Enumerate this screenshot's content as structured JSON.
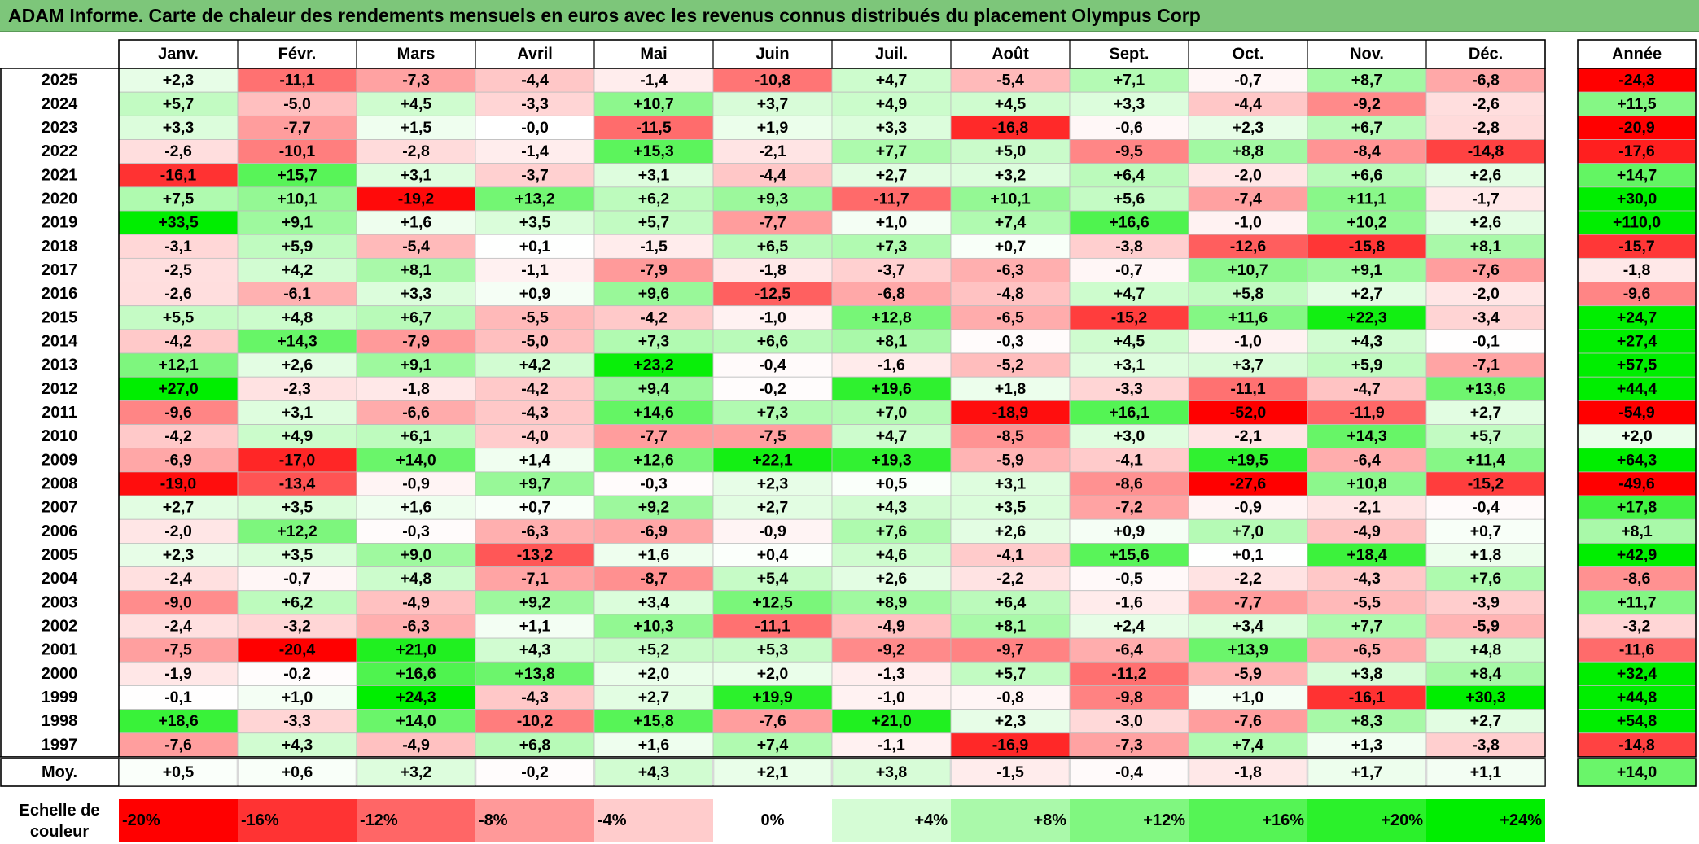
{
  "title": "ADAM Informe. Carte de chaleur des rendements mensuels en euros avec les revenus connus distribués du placement Olympus Corp",
  "chart_data": {
    "type": "heatmap",
    "months": [
      "Janv.",
      "Févr.",
      "Mars",
      "Avril",
      "Mai",
      "Juin",
      "Juil.",
      "Août",
      "Sept.",
      "Oct.",
      "Nov.",
      "Déc."
    ],
    "annual_header": "Année",
    "rows": [
      {
        "year": "2025",
        "values": [
          "+2,3",
          "-11,1",
          "-7,3",
          "-4,4",
          "-1,4",
          "-10,8",
          "+4,7",
          "-5,4",
          "+7,1",
          "-0,7",
          "+8,7",
          "-6,8"
        ],
        "annual": "-24,3"
      },
      {
        "year": "2024",
        "values": [
          "+5,7",
          "-5,0",
          "+4,5",
          "-3,3",
          "+10,7",
          "+3,7",
          "+4,9",
          "+4,5",
          "+3,3",
          "-4,4",
          "-9,2",
          "-2,6"
        ],
        "annual": "+11,5"
      },
      {
        "year": "2023",
        "values": [
          "+3,3",
          "-7,7",
          "+1,5",
          "-0,0",
          "-11,5",
          "+1,9",
          "+3,3",
          "-16,8",
          "-0,6",
          "+2,3",
          "+6,7",
          "-2,8"
        ],
        "annual": "-20,9"
      },
      {
        "year": "2022",
        "values": [
          "-2,6",
          "-10,1",
          "-2,8",
          "-1,4",
          "+15,3",
          "-2,1",
          "+7,7",
          "+5,0",
          "-9,5",
          "+8,8",
          "-8,4",
          "-14,8"
        ],
        "annual": "-17,6"
      },
      {
        "year": "2021",
        "values": [
          "-16,1",
          "+15,7",
          "+3,1",
          "-3,7",
          "+3,1",
          "-4,4",
          "+2,7",
          "+3,2",
          "+6,4",
          "-2,0",
          "+6,6",
          "+2,6"
        ],
        "annual": "+14,7"
      },
      {
        "year": "2020",
        "values": [
          "+7,5",
          "+10,1",
          "-19,2",
          "+13,2",
          "+6,2",
          "+9,3",
          "-11,7",
          "+10,1",
          "+5,6",
          "-7,4",
          "+11,1",
          "-1,7"
        ],
        "annual": "+30,0"
      },
      {
        "year": "2019",
        "values": [
          "+33,5",
          "+9,1",
          "+1,6",
          "+3,5",
          "+5,7",
          "-7,7",
          "+1,0",
          "+7,4",
          "+16,6",
          "-1,0",
          "+10,2",
          "+2,6"
        ],
        "annual": "+110,0"
      },
      {
        "year": "2018",
        "values": [
          "-3,1",
          "+5,9",
          "-5,4",
          "+0,1",
          "-1,5",
          "+6,5",
          "+7,3",
          "+0,7",
          "-3,8",
          "-12,6",
          "-15,8",
          "+8,1"
        ],
        "annual": "-15,7"
      },
      {
        "year": "2017",
        "values": [
          "-2,5",
          "+4,2",
          "+8,1",
          "-1,1",
          "-7,9",
          "-1,8",
          "-3,7",
          "-6,3",
          "-0,7",
          "+10,7",
          "+9,1",
          "-7,6"
        ],
        "annual": "-1,8"
      },
      {
        "year": "2016",
        "values": [
          "-2,6",
          "-6,1",
          "+3,3",
          "+0,9",
          "+9,6",
          "-12,5",
          "-6,8",
          "-4,8",
          "+4,7",
          "+5,8",
          "+2,7",
          "-2,0"
        ],
        "annual": "-9,6"
      },
      {
        "year": "2015",
        "values": [
          "+5,5",
          "+4,8",
          "+6,7",
          "-5,5",
          "-4,2",
          "-1,0",
          "+12,8",
          "-6,5",
          "-15,2",
          "+11,6",
          "+22,3",
          "-3,4"
        ],
        "annual": "+24,7"
      },
      {
        "year": "2014",
        "values": [
          "-4,2",
          "+14,3",
          "-7,9",
          "-5,0",
          "+7,3",
          "+6,6",
          "+8,1",
          "-0,3",
          "+4,5",
          "-1,0",
          "+4,3",
          "-0,1"
        ],
        "annual": "+27,4"
      },
      {
        "year": "2013",
        "values": [
          "+12,1",
          "+2,6",
          "+9,1",
          "+4,2",
          "+23,2",
          "-0,4",
          "-1,6",
          "-5,2",
          "+3,1",
          "+3,7",
          "+5,9",
          "-7,1"
        ],
        "annual": "+57,5"
      },
      {
        "year": "2012",
        "values": [
          "+27,0",
          "-2,3",
          "-1,8",
          "-4,2",
          "+9,4",
          "-0,2",
          "+19,6",
          "+1,8",
          "-3,3",
          "-11,1",
          "-4,7",
          "+13,6"
        ],
        "annual": "+44,4"
      },
      {
        "year": "2011",
        "values": [
          "-9,6",
          "+3,1",
          "-6,6",
          "-4,3",
          "+14,6",
          "+7,3",
          "+7,0",
          "-18,9",
          "+16,1",
          "-52,0",
          "-11,9",
          "+2,7"
        ],
        "annual": "-54,9"
      },
      {
        "year": "2010",
        "values": [
          "-4,2",
          "+4,9",
          "+6,1",
          "-4,0",
          "-7,7",
          "-7,5",
          "+4,7",
          "-8,5",
          "+3,0",
          "-2,1",
          "+14,3",
          "+5,7"
        ],
        "annual": "+2,0"
      },
      {
        "year": "2009",
        "values": [
          "-6,9",
          "-17,0",
          "+14,0",
          "+1,4",
          "+12,6",
          "+22,1",
          "+19,3",
          "-5,9",
          "-4,1",
          "+19,5",
          "-6,4",
          "+11,4"
        ],
        "annual": "+64,3"
      },
      {
        "year": "2008",
        "values": [
          "-19,0",
          "-13,4",
          "-0,9",
          "+9,7",
          "-0,3",
          "+2,3",
          "+0,5",
          "+3,1",
          "-8,6",
          "-27,6",
          "+10,8",
          "-15,2"
        ],
        "annual": "-49,6"
      },
      {
        "year": "2007",
        "values": [
          "+2,7",
          "+3,5",
          "+1,6",
          "+0,7",
          "+9,2",
          "+2,7",
          "+4,3",
          "+3,5",
          "-7,2",
          "-0,9",
          "-2,1",
          "-0,4"
        ],
        "annual": "+17,8"
      },
      {
        "year": "2006",
        "values": [
          "-2,0",
          "+12,2",
          "-0,3",
          "-6,3",
          "-6,9",
          "-0,9",
          "+7,6",
          "+2,6",
          "+0,9",
          "+7,0",
          "-4,9",
          "+0,7"
        ],
        "annual": "+8,1"
      },
      {
        "year": "2005",
        "values": [
          "+2,3",
          "+3,5",
          "+9,0",
          "-13,2",
          "+1,6",
          "+0,4",
          "+4,6",
          "-4,1",
          "+15,6",
          "+0,1",
          "+18,4",
          "+1,8"
        ],
        "annual": "+42,9"
      },
      {
        "year": "2004",
        "values": [
          "-2,4",
          "-0,7",
          "+4,8",
          "-7,1",
          "-8,7",
          "+5,4",
          "+2,6",
          "-2,2",
          "-0,5",
          "-2,2",
          "-4,3",
          "+7,6"
        ],
        "annual": "-8,6"
      },
      {
        "year": "2003",
        "values": [
          "-9,0",
          "+6,2",
          "-4,9",
          "+9,2",
          "+3,4",
          "+12,5",
          "+8,9",
          "+6,4",
          "-1,6",
          "-7,7",
          "-5,5",
          "-3,9"
        ],
        "annual": "+11,7"
      },
      {
        "year": "2002",
        "values": [
          "-2,4",
          "-3,2",
          "-6,3",
          "+1,1",
          "+10,3",
          "-11,1",
          "-4,9",
          "+8,1",
          "+2,4",
          "+3,4",
          "+7,7",
          "-5,9"
        ],
        "annual": "-3,2"
      },
      {
        "year": "2001",
        "values": [
          "-7,5",
          "-20,4",
          "+21,0",
          "+4,3",
          "+5,2",
          "+5,3",
          "-9,2",
          "-9,7",
          "-6,4",
          "+13,9",
          "-6,5",
          "+4,8"
        ],
        "annual": "-11,6"
      },
      {
        "year": "2000",
        "values": [
          "-1,9",
          "-0,2",
          "+16,6",
          "+13,8",
          "+2,0",
          "+2,0",
          "-1,3",
          "+5,7",
          "-11,2",
          "-5,9",
          "+3,8",
          "+8,4"
        ],
        "annual": "+32,4"
      },
      {
        "year": "1999",
        "values": [
          "-0,1",
          "+1,0",
          "+24,3",
          "-4,3",
          "+2,7",
          "+19,9",
          "-1,0",
          "-0,8",
          "-9,8",
          "+1,0",
          "-16,1",
          "+30,3"
        ],
        "annual": "+44,8"
      },
      {
        "year": "1998",
        "values": [
          "+18,6",
          "-3,3",
          "+14,0",
          "-10,2",
          "+15,8",
          "-7,6",
          "+21,0",
          "+2,3",
          "-3,0",
          "-7,6",
          "+8,3",
          "+2,7"
        ],
        "annual": "+54,8"
      },
      {
        "year": "1997",
        "values": [
          "-7,6",
          "+4,3",
          "-4,9",
          "+6,8",
          "+1,6",
          "+7,4",
          "-1,1",
          "-16,9",
          "-7,3",
          "+7,4",
          "+1,3",
          "-3,8"
        ],
        "annual": "-14,8"
      }
    ],
    "average": {
      "label": "Moy.",
      "values": [
        "+0,5",
        "+0,6",
        "+3,2",
        "-0,2",
        "+4,3",
        "+2,1",
        "+3,8",
        "-1,5",
        "-0,4",
        "-1,8",
        "+1,7",
        "+1,1"
      ],
      "annual": "+14,0"
    },
    "scale": {
      "label_line1": "Echelle de",
      "label_line2": "couleur",
      "stops": [
        {
          "label": "-20%",
          "value": -20
        },
        {
          "label": "-16%",
          "value": -16
        },
        {
          "label": "-12%",
          "value": -12
        },
        {
          "label": "-8%",
          "value": -8
        },
        {
          "label": "-4%",
          "value": -4
        },
        {
          "label": "0%",
          "value": 0
        },
        {
          "label": "+4%",
          "value": 4
        },
        {
          "label": "+8%",
          "value": 8
        },
        {
          "label": "+12%",
          "value": 12
        },
        {
          "label": "+16%",
          "value": 16
        },
        {
          "label": "+20%",
          "value": 20
        },
        {
          "label": "+24%",
          "value": 24
        }
      ]
    },
    "colors": {
      "negative_max": "#ff0000",
      "neutral": "#ffffff",
      "positive_max": "#00ee00",
      "title_bar": "#7dc67a"
    }
  }
}
